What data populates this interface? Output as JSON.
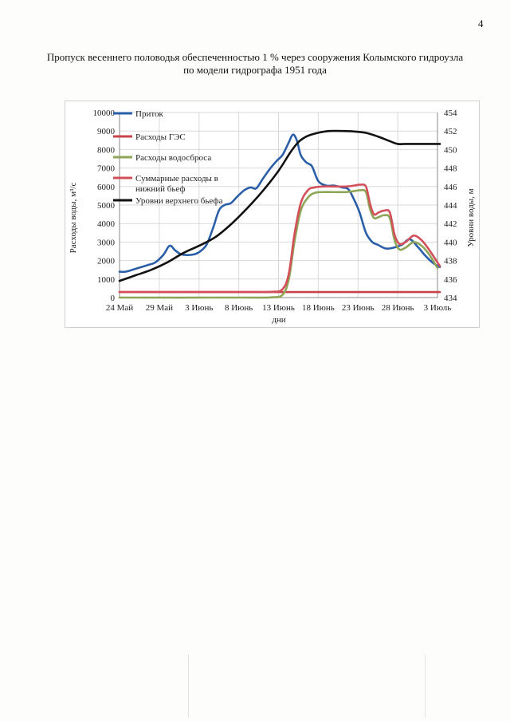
{
  "page_number": "4",
  "title_line1": "Пропуск весеннего половодья обеспеченностью 1 % через сооружения Колымского гидроузла",
  "title_line2": "по модели гидрографа 1951 года",
  "chart_data": {
    "type": "line",
    "xlabel": "дни",
    "ylabel_left": "Расходы воды, м³/с",
    "ylabel_right": "Уровни воды, м",
    "x_ticks": [
      "24 Май",
      "29 Май",
      "3 Июнь",
      "8 Июнь",
      "13 Июнь",
      "18 Июнь",
      "23 Июнь",
      "28 Июнь",
      "3 Июль"
    ],
    "x_tick_days": [
      0,
      5,
      10,
      15,
      20,
      25,
      30,
      35,
      40
    ],
    "y_left_ticks": [
      "0",
      "1000",
      "2000",
      "3000",
      "4000",
      "5000",
      "6000",
      "7000",
      "8000",
      "9000",
      "10000"
    ],
    "y_right_ticks": [
      "434",
      "436",
      "438",
      "440",
      "442",
      "444",
      "446",
      "448",
      "450",
      "452",
      "454"
    ],
    "y_left_range": [
      0,
      10000
    ],
    "y_right_range": [
      434,
      454
    ],
    "x_range": [
      0,
      40
    ],
    "grid": true,
    "legend_position": "top-left",
    "series": [
      {
        "name": "Приток",
        "color": "#2a5fa8",
        "axis": "left",
        "x": [
          0,
          0.8,
          2,
          3.5,
          4.5,
          5.5,
          6.3,
          7,
          7.7,
          8.5,
          9.5,
          10.3,
          11,
          11.8,
          12.5,
          13.2,
          14,
          14.8,
          15.7,
          16.5,
          17.2,
          18,
          19,
          19.8,
          20.5,
          21.2,
          21.8,
          22.3,
          22.8,
          23.5,
          24.2,
          25,
          26,
          27,
          28,
          28.8,
          29.5,
          30.2,
          31,
          31.8,
          32.5,
          33.5,
          34.5,
          35.5,
          36.5,
          37.5,
          38.5,
          39.5,
          40.3
        ],
        "y": [
          1400,
          1400,
          1550,
          1750,
          1900,
          2300,
          2800,
          2550,
          2350,
          2300,
          2350,
          2550,
          2900,
          3800,
          4700,
          5000,
          5100,
          5450,
          5800,
          5950,
          5900,
          6400,
          7000,
          7400,
          7700,
          8300,
          8800,
          8500,
          7700,
          7300,
          7100,
          6300,
          6050,
          6050,
          5950,
          5850,
          5300,
          4600,
          3500,
          3000,
          2850,
          2650,
          2700,
          2850,
          3150,
          2750,
          2250,
          1850,
          1650
        ]
      },
      {
        "name": "Расходы ГЭС",
        "color": "#c9444a",
        "axis": "left",
        "x": [
          0,
          40.3
        ],
        "y": [
          300,
          300
        ]
      },
      {
        "name": "Расходы водосброса",
        "color": "#8ea556",
        "axis": "left",
        "x": [
          0,
          15,
          19,
          20.5,
          21.3,
          22,
          22.8,
          23.7,
          24.5,
          25.5,
          27,
          28.5,
          29.5,
          30.3,
          31,
          31.5,
          32,
          32.6,
          33.3,
          34,
          34.6,
          35.2,
          36,
          37,
          38,
          39,
          40
        ],
        "y": [
          0,
          0,
          10,
          150,
          1000,
          3000,
          4700,
          5400,
          5650,
          5700,
          5700,
          5700,
          5750,
          5800,
          5700,
          4800,
          4300,
          4350,
          4450,
          4300,
          3100,
          2600,
          2700,
          3000,
          2800,
          2300,
          1600
        ]
      },
      {
        "name": "Суммарные расходы в нижний бьеф",
        "color": "#d3505a",
        "axis": "left",
        "x": [
          0,
          15,
          19,
          20.5,
          21.3,
          22,
          22.8,
          23.7,
          24.5,
          25.5,
          27,
          28.5,
          29.5,
          30.3,
          31,
          31.5,
          32,
          32.6,
          33.3,
          34,
          34.6,
          35.2,
          36,
          37,
          38,
          39,
          40.3
        ],
        "y": [
          300,
          300,
          310,
          450,
          1300,
          3400,
          5100,
          5800,
          5950,
          6000,
          6000,
          6000,
          6050,
          6100,
          6000,
          5100,
          4500,
          4600,
          4700,
          4600,
          3400,
          2900,
          3000,
          3350,
          3100,
          2550,
          1700
        ]
      },
      {
        "name": "Уровни верхнего бьефа",
        "color": "#111111",
        "axis": "right",
        "x": [
          0,
          2,
          4,
          6,
          8,
          10,
          12,
          14,
          16,
          18,
          20,
          21.5,
          22.5,
          23.5,
          24.5,
          25.5,
          26.5,
          28,
          29.5,
          31,
          32.5,
          34,
          35,
          36,
          38,
          40.3
        ],
        "y": [
          435.8,
          436.4,
          437.0,
          437.8,
          438.8,
          439.6,
          440.5,
          441.9,
          443.6,
          445.5,
          447.7,
          449.7,
          450.8,
          451.4,
          451.7,
          451.9,
          452.0,
          452.0,
          451.95,
          451.8,
          451.4,
          450.9,
          450.6,
          450.6,
          450.6,
          450.6
        ]
      }
    ]
  }
}
